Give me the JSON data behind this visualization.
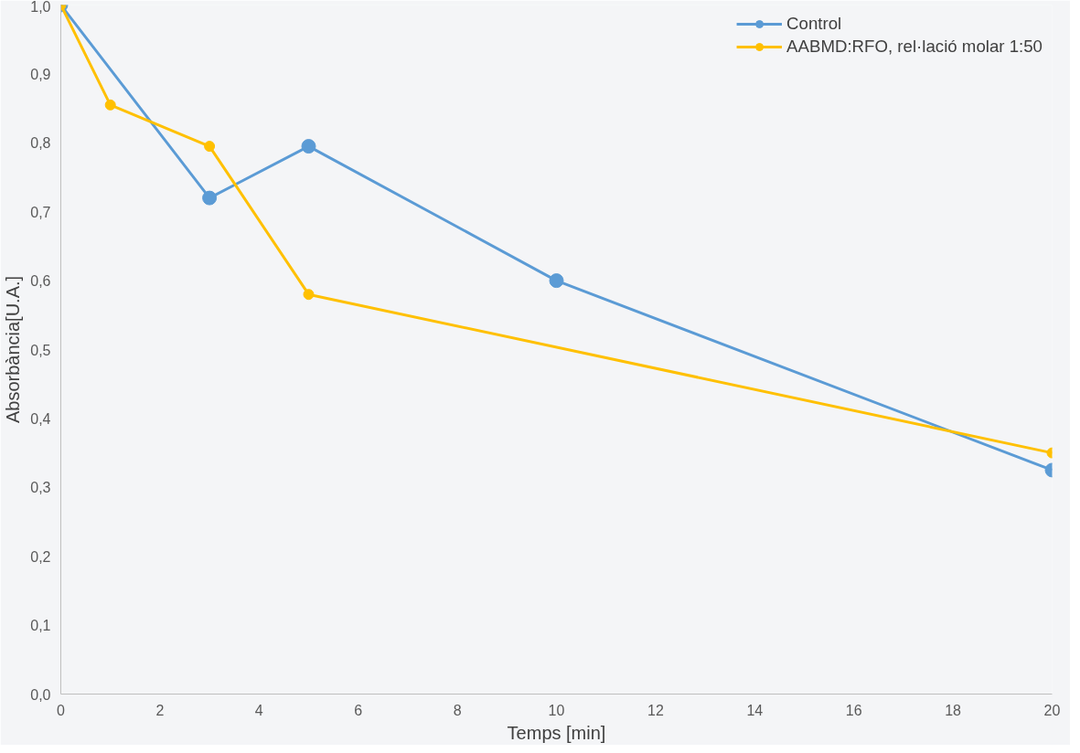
{
  "chart_data": {
    "type": "line",
    "xlabel": "Temps [min]",
    "ylabel": "Absorbància[U.A.]",
    "series": [
      {
        "name": "Control",
        "color": "#5b9bd5",
        "x": [
          0,
          3,
          5,
          10,
          20
        ],
        "values": [
          1.0,
          0.72,
          0.795,
          0.6,
          0.325
        ]
      },
      {
        "name": "AABMD:RFO, rel·lació molar 1:50",
        "color": "#ffc000",
        "x": [
          0,
          1,
          3,
          5,
          20
        ],
        "values": [
          1.0,
          0.855,
          0.795,
          0.58,
          0.35
        ]
      }
    ],
    "xlim": [
      0,
      20
    ],
    "xticks": [
      0,
      2,
      4,
      6,
      8,
      10,
      12,
      14,
      16,
      18,
      20
    ],
    "ylim": [
      0,
      1.0
    ],
    "yticks": [
      {
        "value": 0,
        "label": "0,0"
      },
      {
        "value": 0.1,
        "label": "0,1"
      },
      {
        "value": 0.2,
        "label": "0,2"
      },
      {
        "value": 0.3,
        "label": "0,3"
      },
      {
        "value": 0.4,
        "label": "0,4"
      },
      {
        "value": 0.5,
        "label": "0,5"
      },
      {
        "value": 0.6,
        "label": "0,6"
      },
      {
        "value": 0.7,
        "label": "0,7"
      },
      {
        "value": 0.8,
        "label": "0,8"
      },
      {
        "value": 0.9,
        "label": "0,9"
      },
      {
        "value": 1.0,
        "label": "1,0"
      }
    ],
    "grid": false,
    "legend": "top right",
    "marker": "circle",
    "line_style": "solid"
  }
}
